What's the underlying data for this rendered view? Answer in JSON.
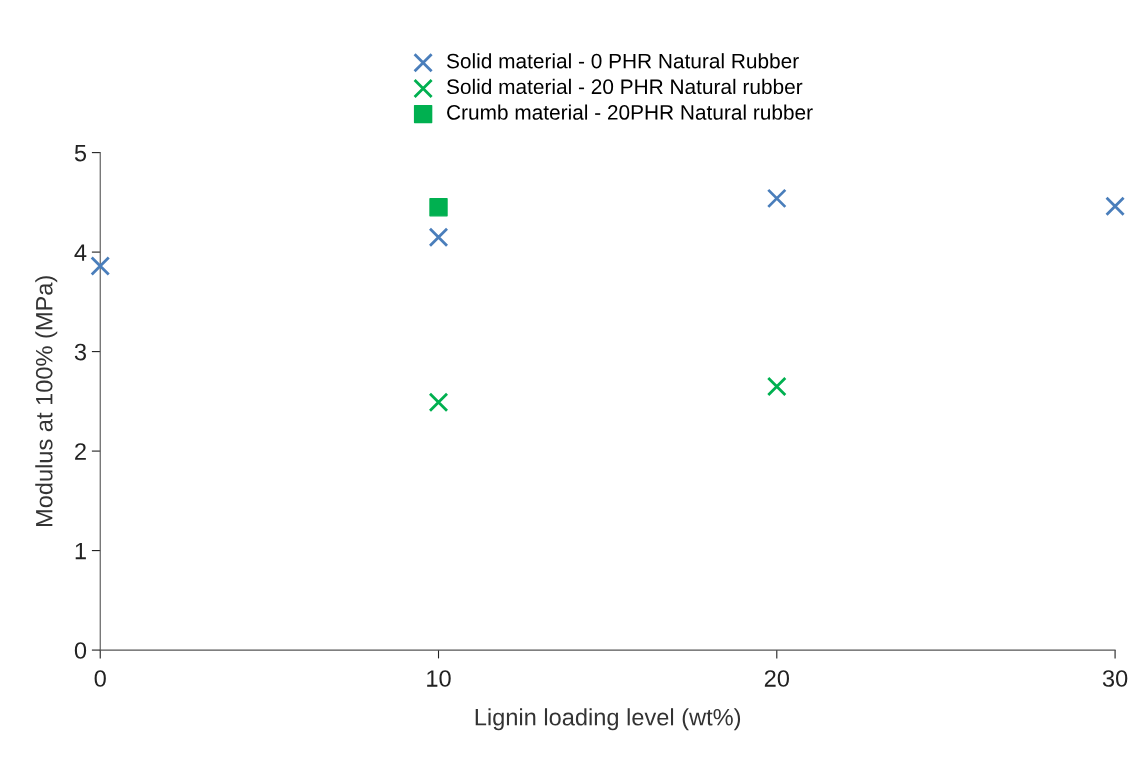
{
  "chart_data": {
    "type": "scatter",
    "xlabel": "Lignin loading level (wt%)",
    "ylabel": "Modulus at 100% (MPa)",
    "xlim": [
      0,
      30
    ],
    "xticks": [
      0,
      10,
      20,
      30
    ],
    "ylim": [
      0,
      5
    ],
    "yticks": [
      0,
      1,
      2,
      3,
      4,
      5
    ],
    "grid": false,
    "legend": "top",
    "series": [
      {
        "name": "Solid material - 0 PHR Natural Rubber",
        "color": "#4a7ebb",
        "marker": "cross",
        "x": [
          0,
          10,
          20,
          30
        ],
        "values": [
          3.86,
          4.15,
          4.54,
          4.46
        ]
      },
      {
        "name": "Solid material - 20 PHR Natural rubber",
        "color": "#00b050",
        "marker": "cross",
        "x": [
          10,
          20
        ],
        "values": [
          2.49,
          2.65
        ]
      },
      {
        "name": "Crumb material - 20PHR Natural rubber",
        "color": "#00b050",
        "marker": "square",
        "x": [
          10
        ],
        "values": [
          4.45
        ]
      }
    ]
  }
}
